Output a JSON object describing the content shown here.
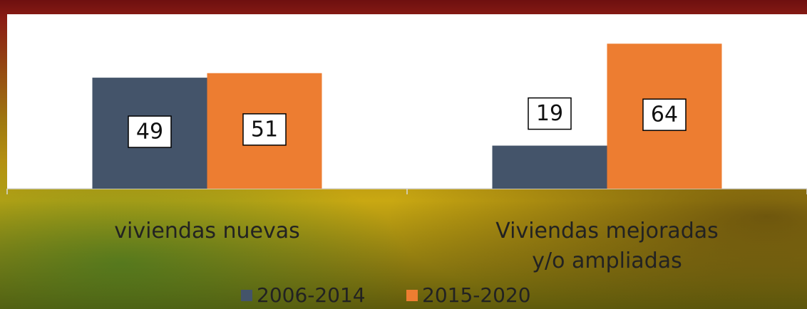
{
  "chart_data": {
    "type": "bar",
    "categories": [
      "viviendas nuevas",
      "Viviendas mejoradas y/o ampliadas"
    ],
    "series": [
      {
        "name": "2006-2014",
        "color": "#44546a",
        "values": [
          49,
          19
        ]
      },
      {
        "name": "2015-2020",
        "color": "#ed7d31",
        "values": [
          51,
          64
        ]
      }
    ],
    "ylim": [
      0,
      77
    ]
  }
}
